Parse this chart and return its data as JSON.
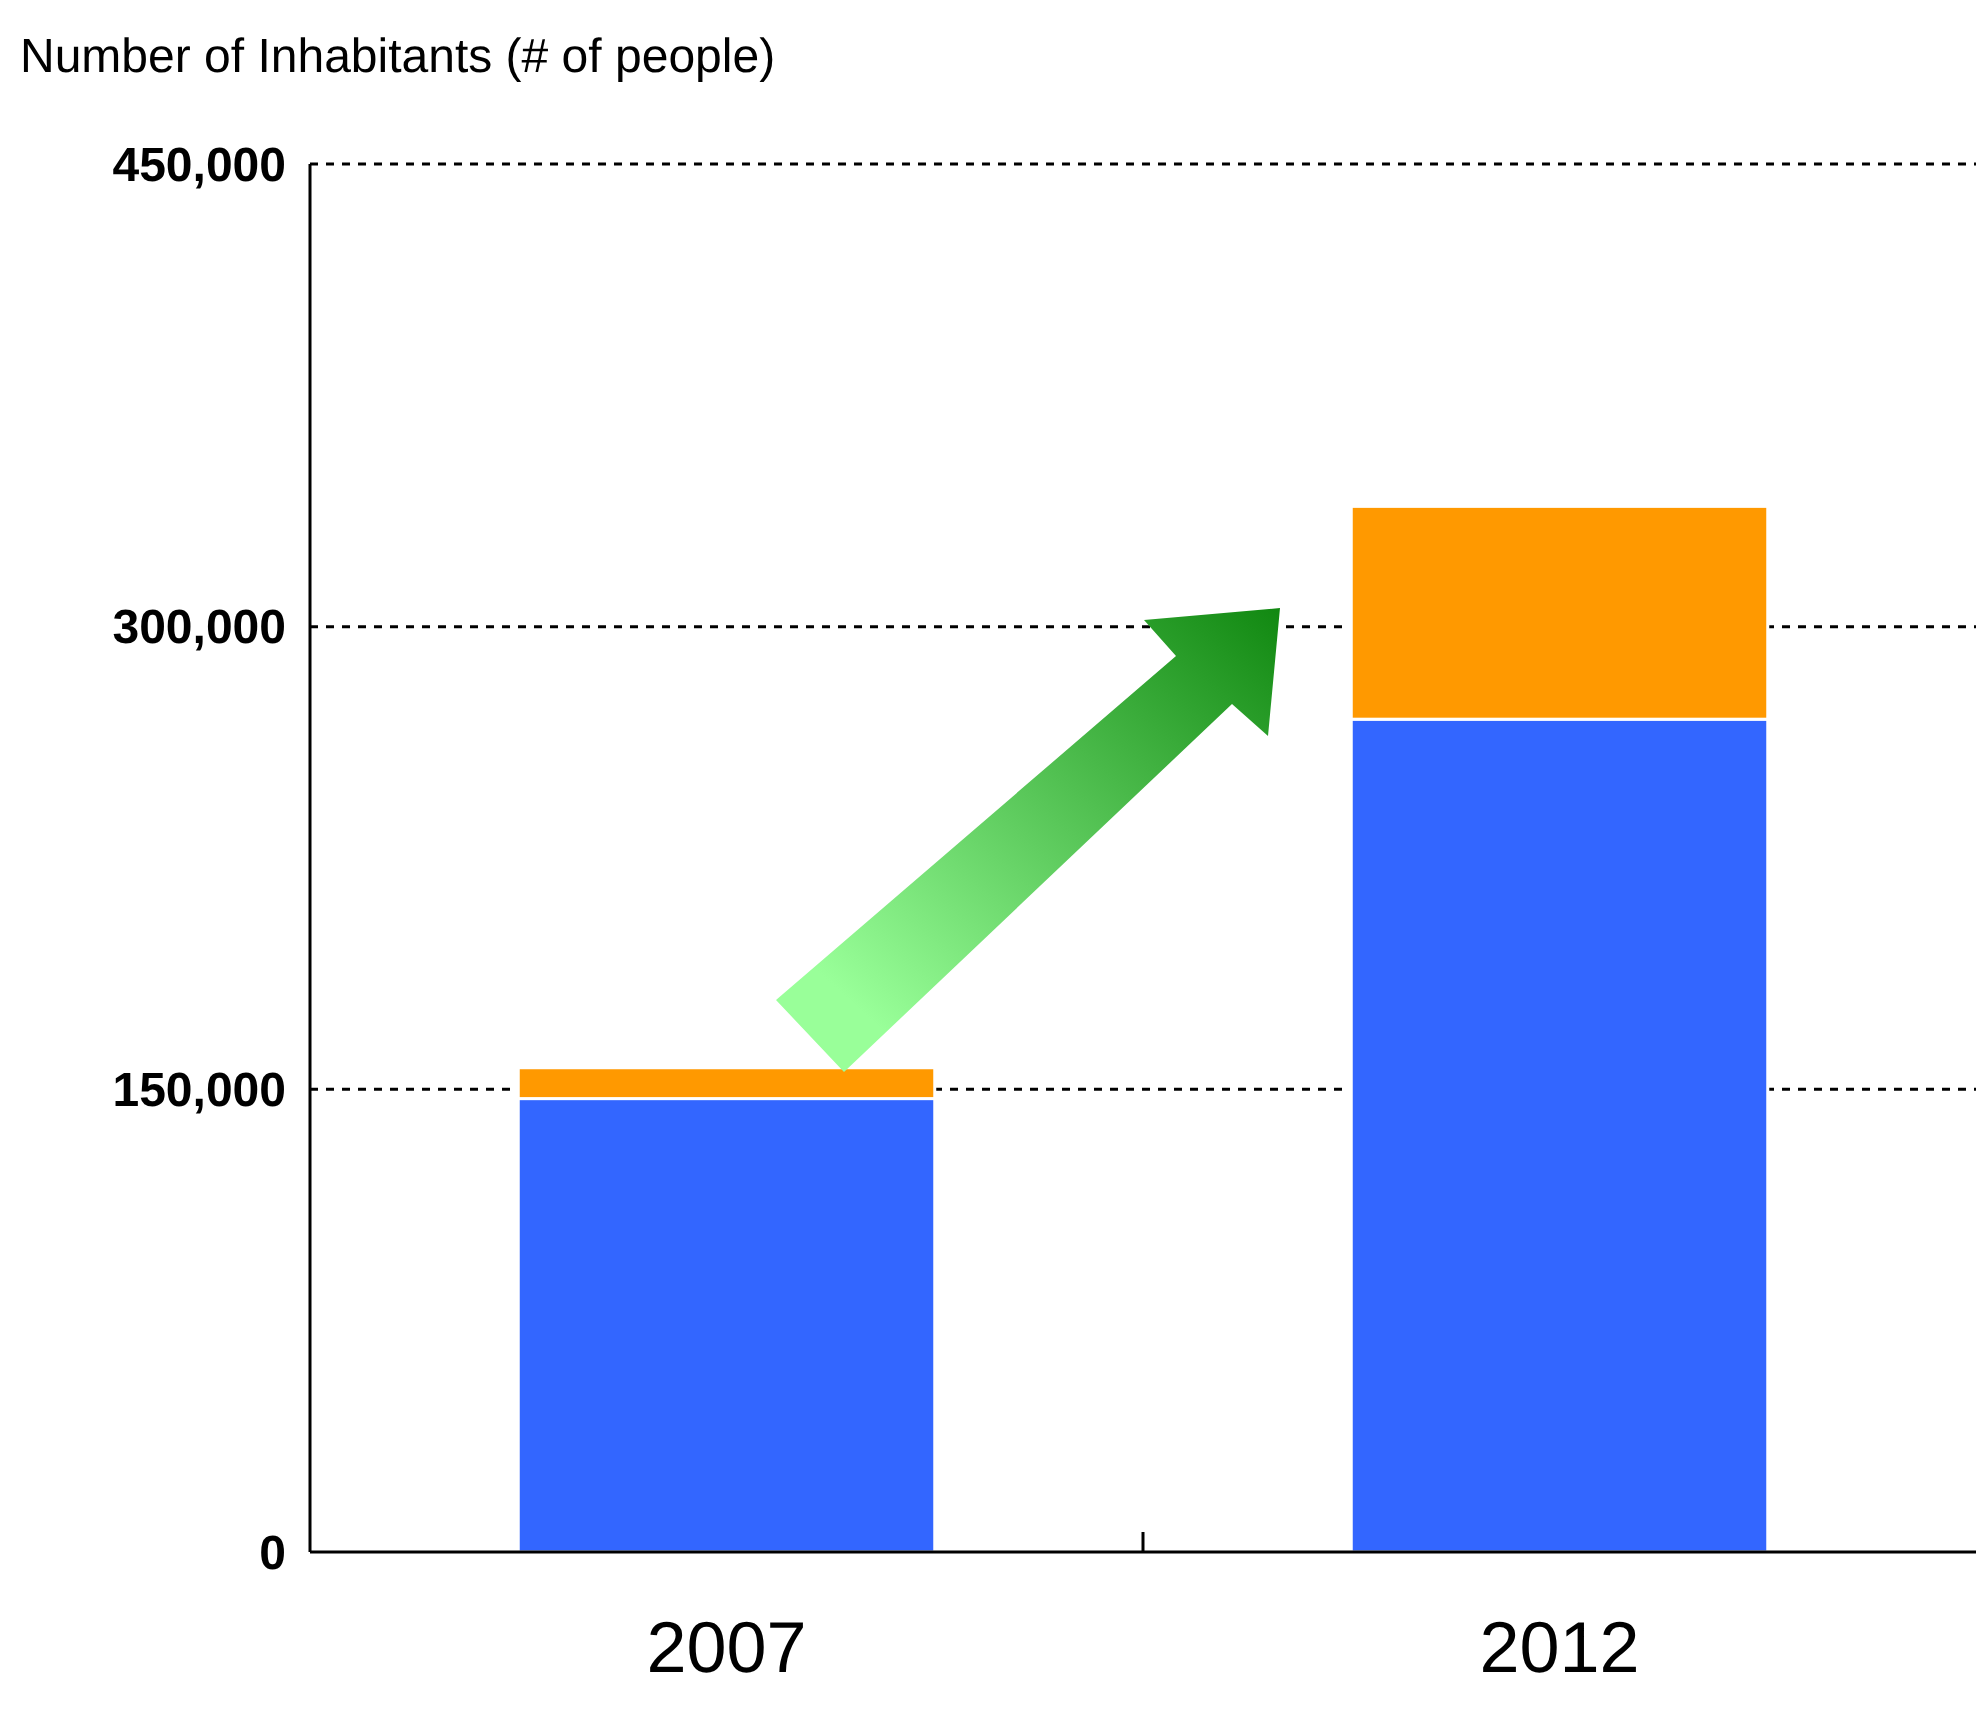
{
  "chart_data": {
    "type": "bar",
    "ylabel": "Number of Inhabitants (# of people)",
    "categories": [
      "2007",
      "2012"
    ],
    "stacked": true,
    "series": [
      {
        "color": "#3366ff",
        "values": [
          147000,
          270000
        ]
      },
      {
        "color": "#ff9900",
        "values": [
          10000,
          69000
        ]
      }
    ],
    "ylim": [
      0,
      450000
    ],
    "yticks": [
      {
        "value": 0,
        "label": "0"
      },
      {
        "value": 150000,
        "label": "150,000"
      },
      {
        "value": 300000,
        "label": "300,000"
      },
      {
        "value": 450000,
        "label": "450,000"
      }
    ],
    "grid": "y"
  }
}
